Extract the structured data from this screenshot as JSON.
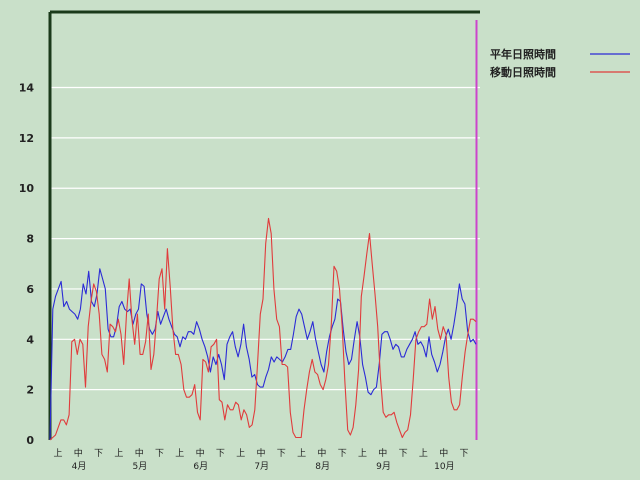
{
  "chart_data": {
    "type": "line",
    "title": "",
    "xlabel": "",
    "ylabel": "",
    "ylim": [
      0,
      17
    ],
    "yticks": [
      0,
      2,
      4,
      6,
      8,
      10,
      12,
      14
    ],
    "grid": true,
    "legend_position": "top-right",
    "x_tick_labels": [
      "上",
      "中",
      "下",
      "上",
      "中",
      "下",
      "上",
      "中",
      "下",
      "上",
      "中",
      "下",
      "上",
      "中",
      "下",
      "上",
      "中",
      "下",
      "上",
      "中",
      "下"
    ],
    "month_labels": [
      "4月",
      "5月",
      "6月",
      "7月",
      "8月",
      "9月",
      "10月"
    ],
    "colors": {
      "background": "#c9e0c9",
      "grid": "#ffffff",
      "axis": "#1a3a1a",
      "marker_line": "#cc44cc"
    },
    "series": [
      {
        "name": "平年日照時間",
        "color": "#2b2bd6",
        "values": [
          0.0,
          5.2,
          5.7,
          6.0,
          6.3,
          5.3,
          5.5,
          5.2,
          5.1,
          5.0,
          4.8,
          5.2,
          6.2,
          5.8,
          6.7,
          5.5,
          5.3,
          5.8,
          6.8,
          6.4,
          6.0,
          4.4,
          4.1,
          4.1,
          4.5,
          5.3,
          5.5,
          5.2,
          5.1,
          5.2,
          4.6,
          5.0,
          5.2,
          6.2,
          6.1,
          5.0,
          4.4,
          4.2,
          4.4,
          5.1,
          4.6,
          4.9,
          5.2,
          4.8,
          4.5,
          4.2,
          4.1,
          3.7,
          4.1,
          4.0,
          4.3,
          4.3,
          4.2,
          4.7,
          4.4,
          4.0,
          3.7,
          3.3,
          2.7,
          3.3,
          3.0,
          3.4,
          3.0,
          2.4,
          3.8,
          4.1,
          4.3,
          3.7,
          3.3,
          3.8,
          4.6,
          3.7,
          3.2,
          2.5,
          2.6,
          2.2,
          2.1,
          2.1,
          2.5,
          2.8,
          3.3,
          3.1,
          3.3,
          3.2,
          3.1,
          3.3,
          3.6,
          3.6,
          4.2,
          4.9,
          5.2,
          5.0,
          4.5,
          4.0,
          4.3,
          4.7,
          4.0,
          3.5,
          3.0,
          2.7,
          3.5,
          4.1,
          4.5,
          4.8,
          5.6,
          5.5,
          4.4,
          3.5,
          3.0,
          3.2,
          4.0,
          4.7,
          4.1,
          3.0,
          2.5,
          1.9,
          1.8,
          2.0,
          2.1,
          3.0,
          4.2,
          4.3,
          4.3,
          4.0,
          3.6,
          3.8,
          3.7,
          3.3,
          3.3,
          3.6,
          3.8,
          4.0,
          4.3,
          3.8,
          3.9,
          3.7,
          3.3,
          4.1,
          3.4,
          3.1,
          2.7,
          3.0,
          3.5,
          4.1,
          4.4,
          4.0,
          4.6,
          5.3,
          6.2,
          5.6,
          5.4,
          4.3,
          3.9,
          4.0,
          3.8
        ]
      },
      {
        "name": "移動日照時間",
        "color": "#e03c3c",
        "values": [
          0.0,
          0.1,
          0.2,
          0.5,
          0.8,
          0.8,
          0.6,
          1.0,
          3.9,
          4.0,
          3.4,
          4.0,
          3.8,
          2.1,
          4.5,
          5.5,
          6.2,
          5.9,
          5.0,
          3.4,
          3.2,
          2.7,
          4.6,
          4.5,
          4.3,
          4.8,
          4.2,
          3.0,
          5.0,
          6.4,
          4.8,
          3.8,
          5.0,
          3.4,
          3.4,
          3.9,
          5.0,
          2.8,
          3.4,
          4.8,
          6.4,
          6.8,
          5.2,
          7.6,
          6.1,
          4.4,
          3.4,
          3.4,
          3.0,
          2.0,
          1.7,
          1.7,
          1.8,
          2.2,
          1.1,
          0.8,
          3.2,
          3.1,
          2.7,
          3.7,
          3.8,
          4.0,
          1.6,
          1.5,
          0.8,
          1.4,
          1.2,
          1.2,
          1.5,
          1.4,
          0.8,
          1.2,
          1.0,
          0.5,
          0.6,
          1.2,
          3.0,
          5.0,
          5.6,
          7.8,
          8.8,
          8.2,
          6.0,
          4.8,
          4.5,
          3.0,
          3.0,
          2.9,
          1.1,
          0.3,
          0.1,
          0.1,
          0.1,
          1.2,
          2.0,
          2.7,
          3.2,
          2.7,
          2.6,
          2.2,
          2.0,
          2.4,
          3.0,
          4.6,
          6.9,
          6.7,
          6.0,
          4.5,
          2.3,
          0.4,
          0.2,
          0.5,
          1.4,
          2.8,
          5.7,
          6.5,
          7.4,
          8.2,
          7.0,
          5.8,
          4.5,
          2.5,
          1.1,
          0.9,
          1.0,
          1.0,
          1.1,
          0.7,
          0.4,
          0.1,
          0.3,
          0.4,
          1.0,
          2.4,
          4.0,
          4.3,
          4.5,
          4.5,
          4.6,
          5.6,
          4.8,
          5.3,
          4.4,
          4.0,
          4.5,
          4.2,
          2.5,
          1.5,
          1.2,
          1.2,
          1.4,
          2.5,
          3.5,
          4.2,
          4.8,
          4.8,
          4.7
        ]
      }
    ]
  }
}
